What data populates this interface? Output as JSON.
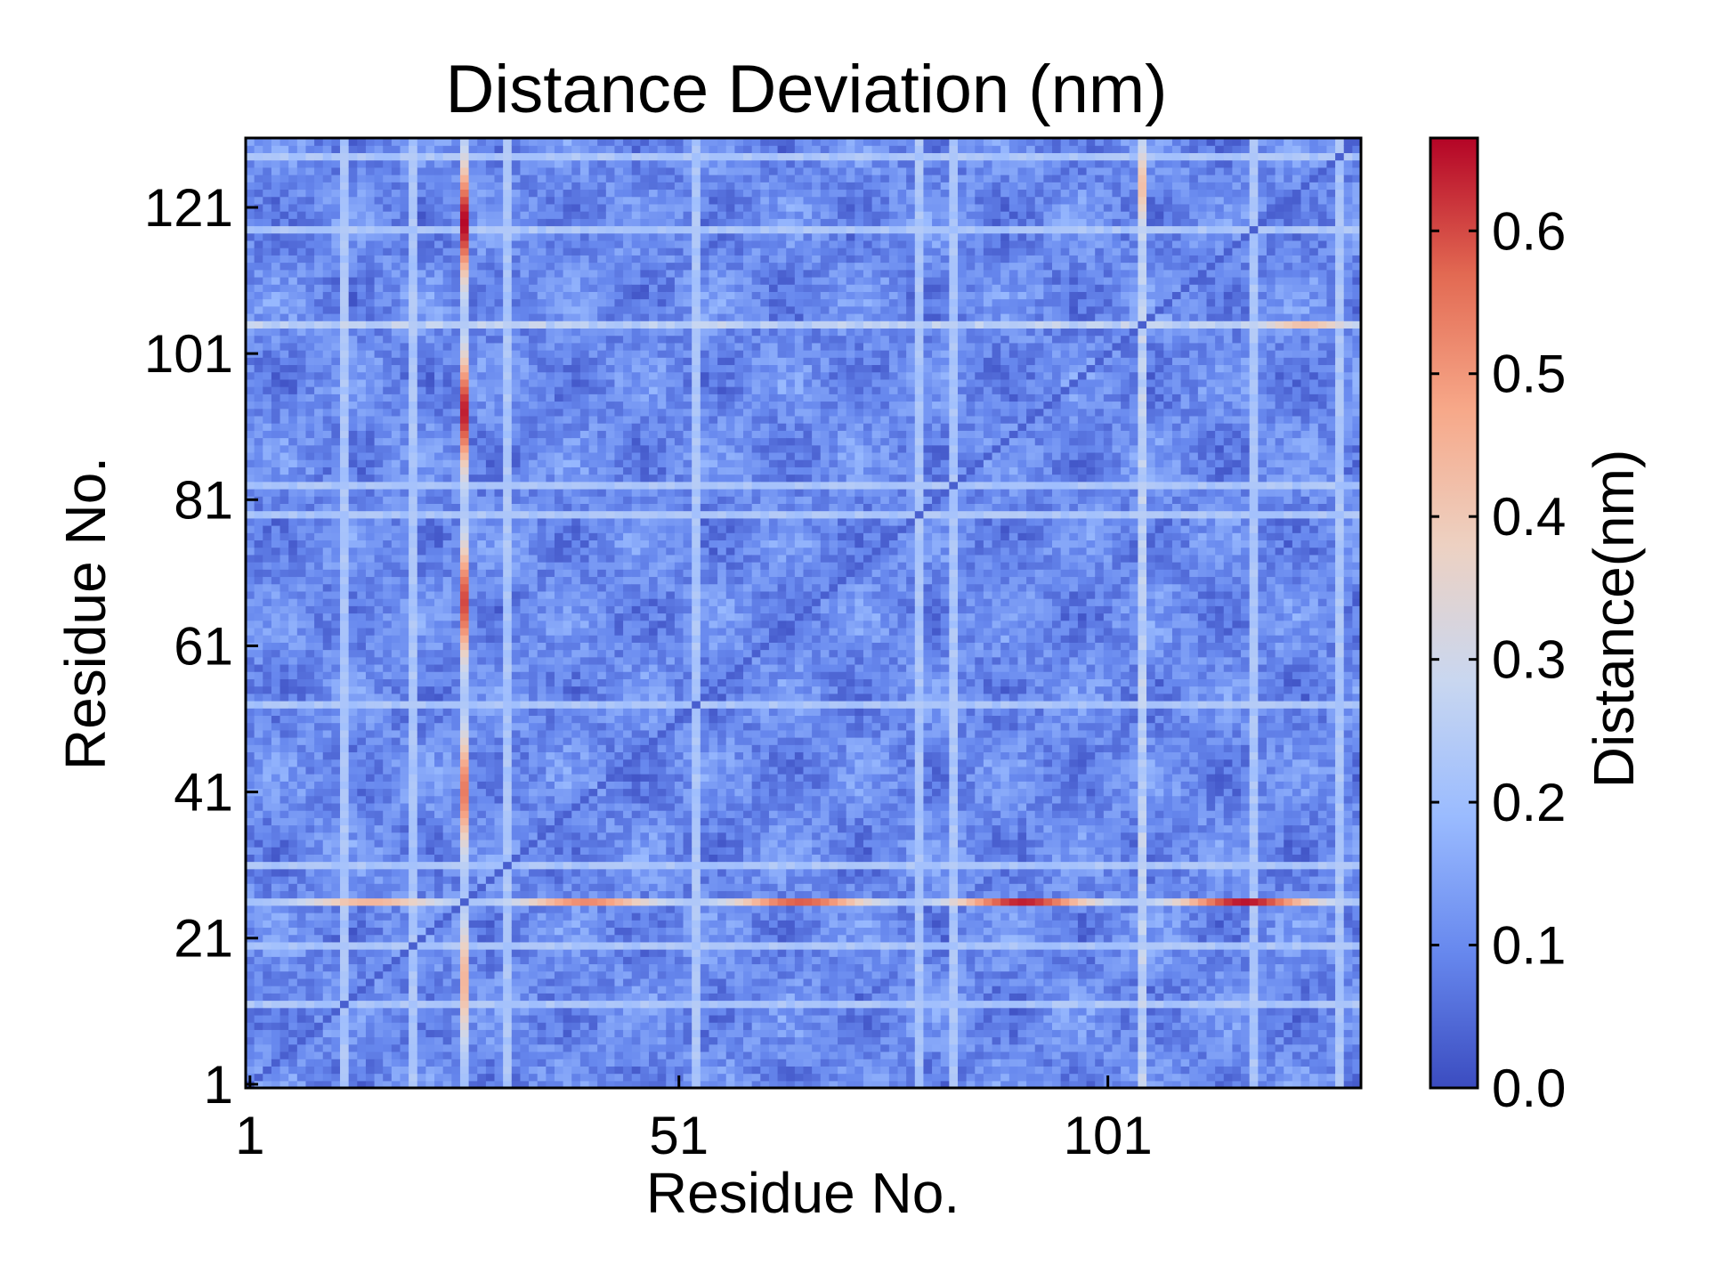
{
  "chart_data": {
    "type": "heatmap",
    "title": "Distance Deviation (nm)",
    "xlabel": "Residue No.",
    "ylabel": "Residue No.",
    "n_residues": 130,
    "xlim": [
      1,
      130
    ],
    "ylim": [
      1,
      130
    ],
    "x_ticks": [
      1,
      51,
      101
    ],
    "y_ticks": [
      1,
      21,
      41,
      61,
      81,
      101,
      121
    ],
    "colorbar": {
      "label": "Distance(nm)",
      "range": [
        0.0,
        0.665
      ],
      "ticks": [
        0.0,
        0.1,
        0.2,
        0.3,
        0.4,
        0.5,
        0.6
      ],
      "tick_labels": [
        "0.0",
        "0.1",
        "0.2",
        "0.3",
        "0.4",
        "0.5",
        "0.6"
      ],
      "colormap": "coolwarm",
      "colormap_stops": [
        "#3b4cc0",
        "#6788ee",
        "#9abbff",
        "#c9d7f0",
        "#edd1c2",
        "#f7a889",
        "#e26952",
        "#b40426"
      ]
    },
    "notable_features": {
      "diagonal_value": 0.03,
      "background_range": [
        0.05,
        0.15
      ],
      "hot_residue": 26,
      "hot_row_peaks": [
        {
          "x": 15,
          "value": 0.44
        },
        {
          "x": 40,
          "value": 0.52
        },
        {
          "x": 65,
          "value": 0.58
        },
        {
          "x": 91,
          "value": 0.64
        },
        {
          "x": 117,
          "value": 0.65
        }
      ],
      "hot_column_peaks": [
        {
          "y": 15,
          "value": 0.44
        },
        {
          "y": 41,
          "value": 0.54
        },
        {
          "y": 67,
          "value": 0.6
        },
        {
          "y": 93,
          "value": 0.64
        },
        {
          "y": 119,
          "value": 0.66
        }
      ],
      "secondary_residue": 105,
      "secondary_peak_value": 0.42,
      "light_band_residues": [
        12,
        20,
        31,
        53,
        79,
        83,
        118,
        128
      ]
    }
  }
}
